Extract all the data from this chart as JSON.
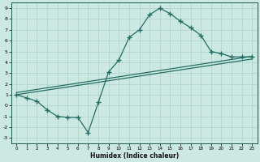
{
  "xlabel": "Humidex (Indice chaleur)",
  "xlim": [
    -0.5,
    23.5
  ],
  "ylim": [
    -3.5,
    9.5
  ],
  "xticks": [
    0,
    1,
    2,
    3,
    4,
    5,
    6,
    7,
    8,
    9,
    10,
    11,
    12,
    13,
    14,
    15,
    16,
    17,
    18,
    19,
    20,
    21,
    22,
    23
  ],
  "yticks": [
    -3,
    -2,
    -1,
    0,
    1,
    2,
    3,
    4,
    5,
    6,
    7,
    8,
    9
  ],
  "bg_color": "#cce8e2",
  "grid_color": "#aed0c8",
  "line_color": "#236e62",
  "curve_x": [
    0,
    1,
    2,
    3,
    4,
    5,
    6,
    7,
    8,
    9,
    10,
    11,
    12,
    13,
    14,
    15,
    16,
    17,
    18,
    19,
    20,
    21,
    22,
    23
  ],
  "curve_y": [
    1.0,
    0.7,
    0.4,
    -0.4,
    -1.0,
    -1.1,
    -1.1,
    -2.5,
    0.3,
    3.1,
    4.2,
    6.3,
    7.0,
    8.4,
    9.0,
    8.5,
    7.8,
    7.2,
    6.5,
    5.0,
    4.8,
    4.5,
    4.5,
    4.5
  ],
  "line2_x": [
    0,
    23
  ],
  "line2_y": [
    1.0,
    4.3
  ],
  "line3_x": [
    0,
    23
  ],
  "line3_y": [
    1.2,
    4.55
  ]
}
